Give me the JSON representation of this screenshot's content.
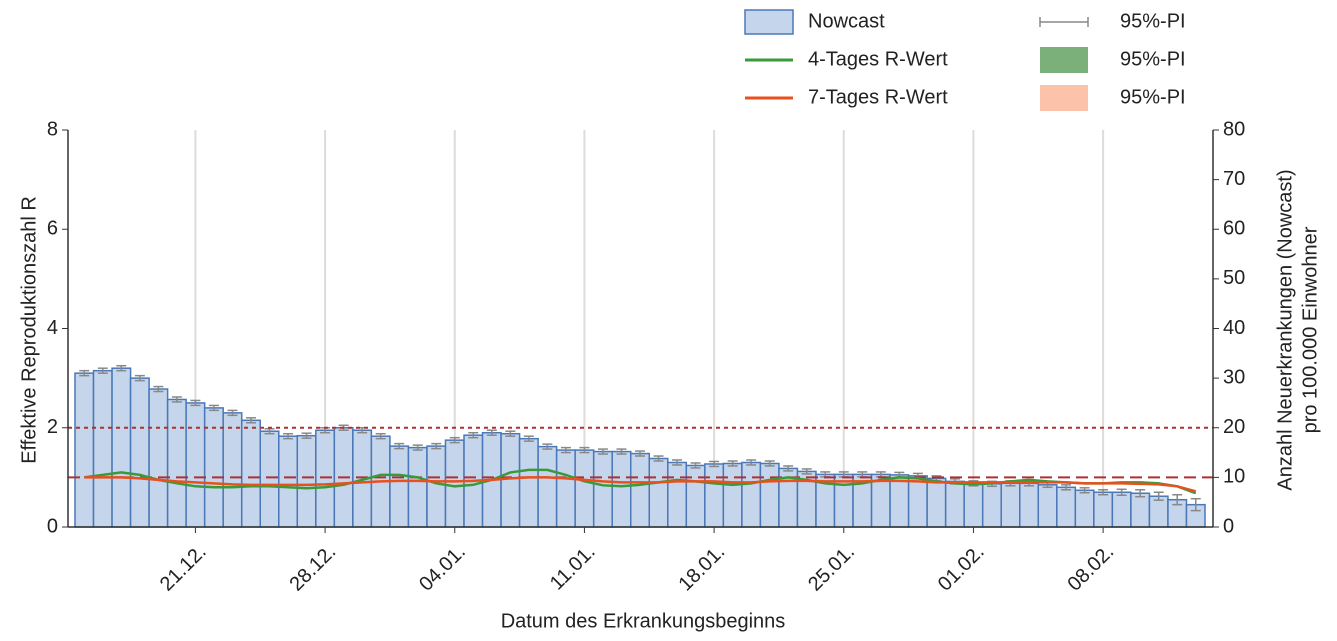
{
  "chart_data": {
    "type": "bar-line",
    "xlabel": "Datum des Erkrankungsbeginns",
    "ylabel": "Effektive Reproduktionszahl R",
    "y2label": [
      "Anzahl Neuerkrankungen (Nowcast)",
      "pro 100.000 Einwohner"
    ],
    "categories": [
      null,
      null,
      null,
      null,
      null,
      null,
      "21.12.",
      null,
      null,
      null,
      null,
      null,
      null,
      "28.12.",
      null,
      null,
      null,
      null,
      null,
      null,
      "04.01.",
      null,
      null,
      null,
      null,
      null,
      null,
      "11.01.",
      null,
      null,
      null,
      null,
      null,
      null,
      "18.01.",
      null,
      null,
      null,
      null,
      null,
      null,
      "25.01.",
      null,
      null,
      null,
      null,
      null,
      null,
      "01.02.",
      null,
      null,
      null,
      null,
      null,
      null,
      "08.02.",
      null,
      null,
      null,
      null,
      null
    ],
    "ylim": [
      0,
      8
    ],
    "yticks": [
      0,
      2,
      4,
      6,
      8
    ],
    "y2lim": [
      0,
      80
    ],
    "y2ticks": [
      0,
      10,
      20,
      30,
      40,
      50,
      60,
      70,
      80
    ],
    "grid": "x",
    "series": [
      {
        "name": "Nowcast",
        "type": "bar",
        "axis": "y2",
        "color": "#c5d6ec",
        "edge": "#4a78b8",
        "values": [
          31,
          31.5,
          32,
          30,
          27.8,
          25.7,
          25,
          24,
          23,
          21.5,
          19.3,
          18.3,
          18.4,
          19.5,
          20,
          19.5,
          18.3,
          16.3,
          16,
          16.3,
          17.5,
          18.5,
          19,
          18.8,
          17.8,
          16.2,
          15.5,
          15.5,
          15.2,
          15.2,
          14.8,
          13.8,
          13,
          12.4,
          12.7,
          12.8,
          13,
          12.8,
          11.8,
          11.2,
          10.6,
          10.6,
          10.6,
          10.6,
          10.5,
          10.3,
          9.8,
          9.2,
          8.8,
          8.7,
          8.8,
          8.8,
          8.5,
          8,
          7.4,
          7,
          7,
          6.8,
          6.2,
          5.5,
          4.5
        ],
        "errors": [
          0.5,
          0.5,
          0.5,
          0.5,
          0.5,
          0.5,
          0.5,
          0.5,
          0.5,
          0.5,
          0.5,
          0.5,
          0.5,
          0.5,
          0.5,
          0.5,
          0.5,
          0.5,
          0.5,
          0.5,
          0.5,
          0.5,
          0.5,
          0.5,
          0.5,
          0.5,
          0.5,
          0.5,
          0.5,
          0.5,
          0.5,
          0.5,
          0.5,
          0.5,
          0.5,
          0.5,
          0.5,
          0.5,
          0.5,
          0.5,
          0.5,
          0.5,
          0.5,
          0.5,
          0.5,
          0.5,
          0.5,
          0.5,
          0.5,
          0.5,
          0.5,
          0.5,
          0.5,
          0.5,
          0.5,
          0.5,
          0.6,
          0.7,
          0.8,
          1.0,
          1.2
        ]
      },
      {
        "name": "4-Tages R-Wert",
        "type": "line",
        "axis": "y",
        "color": "#3a9a3a",
        "values": [
          1.0,
          1.05,
          1.1,
          1.05,
          0.95,
          0.88,
          0.82,
          0.8,
          0.8,
          0.82,
          0.82,
          0.8,
          0.78,
          0.8,
          0.85,
          0.95,
          1.05,
          1.05,
          1.0,
          0.88,
          0.82,
          0.85,
          0.95,
          1.1,
          1.15,
          1.15,
          1.05,
          0.92,
          0.84,
          0.82,
          0.85,
          0.9,
          0.95,
          0.92,
          0.88,
          0.85,
          0.88,
          0.95,
          1.0,
          0.95,
          0.88,
          0.85,
          0.88,
          0.95,
          1.0,
          0.98,
          0.92,
          0.88,
          0.86,
          0.88,
          0.92,
          0.95,
          0.92,
          0.9,
          0.88,
          0.88,
          0.9,
          0.9,
          0.88,
          0.82,
          0.68
        ]
      },
      {
        "name": "7-Tages R-Wert",
        "type": "line",
        "axis": "y",
        "color": "#e8501e",
        "values": [
          1.0,
          1.0,
          1.0,
          0.98,
          0.95,
          0.92,
          0.9,
          0.88,
          0.86,
          0.85,
          0.85,
          0.85,
          0.85,
          0.86,
          0.88,
          0.9,
          0.92,
          0.93,
          0.93,
          0.92,
          0.92,
          0.93,
          0.95,
          0.98,
          1.0,
          1.0,
          0.98,
          0.95,
          0.92,
          0.9,
          0.9,
          0.9,
          0.92,
          0.92,
          0.92,
          0.9,
          0.9,
          0.92,
          0.93,
          0.93,
          0.92,
          0.92,
          0.92,
          0.93,
          0.93,
          0.92,
          0.9,
          0.9,
          0.9,
          0.9,
          0.9,
          0.9,
          0.9,
          0.9,
          0.88,
          0.88,
          0.88,
          0.87,
          0.86,
          0.82,
          0.72
        ]
      }
    ],
    "pi_legend": [
      {
        "label": "95%-PI",
        "symbol": "errorbar",
        "color": "#888888"
      },
      {
        "label": "95%-PI",
        "symbol": "box",
        "color": "#7bb07b"
      },
      {
        "label": "95%-PI",
        "symbol": "box",
        "color": "#fcc3aa"
      }
    ],
    "reference_lines": [
      {
        "value": 1,
        "dash": "12,6",
        "color": "#b03030"
      },
      {
        "value": 2,
        "dash": "4,4",
        "color": "#b03030"
      }
    ]
  }
}
